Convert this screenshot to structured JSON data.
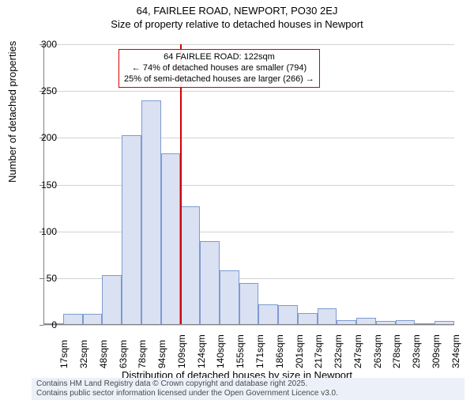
{
  "title_main": "64, FAIRLEE ROAD, NEWPORT, PO30 2EJ",
  "title_sub": "Size of property relative to detached houses in Newport",
  "yaxis_title": "Number of detached properties",
  "xaxis_title": "Distribution of detached houses by size in Newport",
  "footer_line1": "Contains HM Land Registry data © Crown copyright and database right 2025.",
  "footer_line2": "Contains public sector information licensed under the Open Government Licence v3.0.",
  "footer_bg": "#ecf0f8",
  "footer_color": "#4a4a4a",
  "chart": {
    "type": "histogram",
    "background_color": "#ffffff",
    "grid_color": "#808080",
    "grid_opacity": 0.35,
    "bar_fill": "#d9e1f2",
    "bar_stroke": "#7f9bd1",
    "bar_stroke_width": 1,
    "ylim": [
      0,
      300
    ],
    "ytick_step": 50,
    "yticks": [
      0,
      50,
      100,
      150,
      200,
      250,
      300
    ],
    "x_labels": [
      "17sqm",
      "32sqm",
      "48sqm",
      "63sqm",
      "78sqm",
      "94sqm",
      "109sqm",
      "124sqm",
      "140sqm",
      "155sqm",
      "171sqm",
      "186sqm",
      "201sqm",
      "217sqm",
      "232sqm",
      "247sqm",
      "263sqm",
      "278sqm",
      "293sqm",
      "309sqm",
      "324sqm"
    ],
    "values": [
      0,
      12,
      12,
      53,
      203,
      240,
      183,
      127,
      90,
      58,
      45,
      22,
      21,
      13,
      18,
      5,
      8,
      4,
      5,
      0,
      4
    ],
    "bar_count": 21,
    "label_fontsize": 12,
    "title_fontsize": 13
  },
  "reference_line": {
    "color": "#d40000",
    "bin_index": 7,
    "width": 2
  },
  "annotation": {
    "border_color": "#d40000",
    "line1": "64 FAIRLEE ROAD: 122sqm",
    "line2": "← 74% of detached houses are smaller (794)",
    "line3": "25% of semi-detached houses are larger (266) →"
  }
}
